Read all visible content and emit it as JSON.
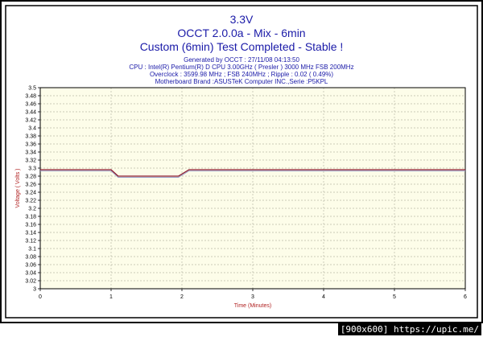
{
  "header": {
    "title": "3.3V",
    "subtitle": "OCCT 2.0.0a - Mix - 6min",
    "status": "Custom (6min) Test Completed - Stable !",
    "generated": "Generated by OCCT : 27/11/08 04:13:50",
    "cpu": "CPU : Intel(R) Pentium(R) D CPU 3.00GHz ( Presler ) 3000 MHz FSB 200MHz",
    "overclock": "Overclock : 3599.98 MHz ; FSB 240MHz ; Ripple : 0.02 ( 0.49%)",
    "motherboard": "Motherboard Brand :ASUSTeK Computer INC.,Serie :P5KPL"
  },
  "watermark": "[900x600] https://upic.me/",
  "colors": {
    "plot_bg": "#fdfde9",
    "grid": "#b9b9a8",
    "series": "#8b1a2e",
    "series_shadow": "#9aa0c8",
    "text": "#1a1aa8",
    "axis_label": "#b02020"
  },
  "chart_data": {
    "type": "line",
    "title": "3.3V",
    "xlabel": "Time (Minutes)",
    "ylabel": "Voltage ( Volts )",
    "xlim": [
      0,
      6
    ],
    "ylim": [
      3,
      3.5
    ],
    "xticks": [
      "0",
      "1",
      "2",
      "3",
      "4",
      "5",
      "6"
    ],
    "yticks": [
      "3",
      "3.02",
      "3.04",
      "3.06",
      "3.08",
      "3.1",
      "3.12",
      "3.14",
      "3.16",
      "3.18",
      "3.2",
      "3.22",
      "3.24",
      "3.26",
      "3.28",
      "3.3",
      "3.32",
      "3.34",
      "3.36",
      "3.38",
      "3.4",
      "3.42",
      "3.44",
      "3.46",
      "3.48",
      "3.5"
    ],
    "grid": true,
    "series": [
      {
        "x": [
          0,
          1.0,
          1.1,
          1.95,
          2.1,
          6
        ],
        "y": [
          3.296,
          3.296,
          3.28,
          3.28,
          3.296,
          3.296
        ]
      }
    ]
  }
}
